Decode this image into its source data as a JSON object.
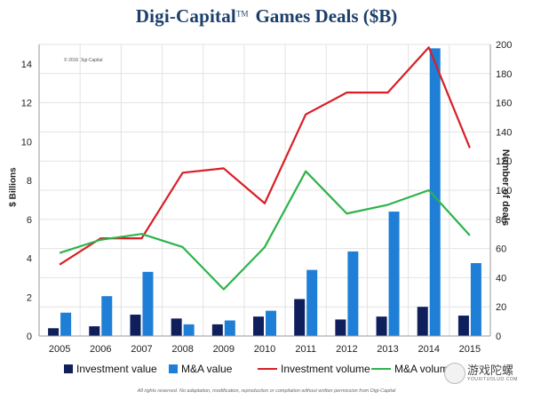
{
  "header": {
    "brand": "Digi-Capital",
    "trademark": "TM",
    "title_rest": "Games Deals ($B)"
  },
  "copyright": "© 2016 Digi-Capital",
  "footer": "All rights reserved. No adaptation, modification, reproduction or compilation without written permission from Digi-Capital",
  "watermark": {
    "text": "游戏陀螺",
    "url": "YOUXITUOLUO.COM"
  },
  "colors": {
    "investment_value": "#0f1f5c",
    "ma_value": "#1f7fd6",
    "investment_volume": "#d81f26",
    "ma_volume": "#2db34a",
    "grid": "#e3e3e3",
    "axis_text": "#222222"
  },
  "chart_data": {
    "type": "bar",
    "categories": [
      "2005",
      "2006",
      "2007",
      "2008",
      "2009",
      "2010",
      "2011",
      "2012",
      "2013",
      "2014",
      "2015"
    ],
    "ylabel": "$ Billions",
    "ylabel_right": "Number of deals",
    "ylim": [
      0,
      15
    ],
    "yticks": [
      0,
      2,
      4,
      6,
      8,
      10,
      12,
      14
    ],
    "ylim_right": [
      0,
      200
    ],
    "yticks_right": [
      0,
      20,
      40,
      60,
      80,
      100,
      120,
      140,
      160,
      180,
      200
    ],
    "grid": true,
    "legend_position": "bottom",
    "series": [
      {
        "name": "Investment value",
        "kind": "bar",
        "axis": "left",
        "values": [
          0.4,
          0.5,
          1.1,
          0.9,
          0.6,
          1.0,
          1.9,
          0.85,
          1.0,
          1.5,
          1.05
        ]
      },
      {
        "name": "M&A value",
        "kind": "bar",
        "axis": "left",
        "values": [
          1.2,
          2.05,
          3.3,
          0.6,
          0.8,
          1.3,
          3.4,
          4.35,
          6.4,
          14.8,
          3.75
        ]
      },
      {
        "name": "Investment volume",
        "kind": "line",
        "axis": "right",
        "values": [
          49,
          67,
          67,
          112,
          115,
          91,
          152,
          167,
          167,
          198,
          129
        ]
      },
      {
        "name": "M&A volume",
        "kind": "line",
        "axis": "right",
        "values": [
          57,
          66,
          70,
          61,
          32,
          61,
          113,
          84,
          90,
          100,
          69
        ]
      }
    ]
  }
}
